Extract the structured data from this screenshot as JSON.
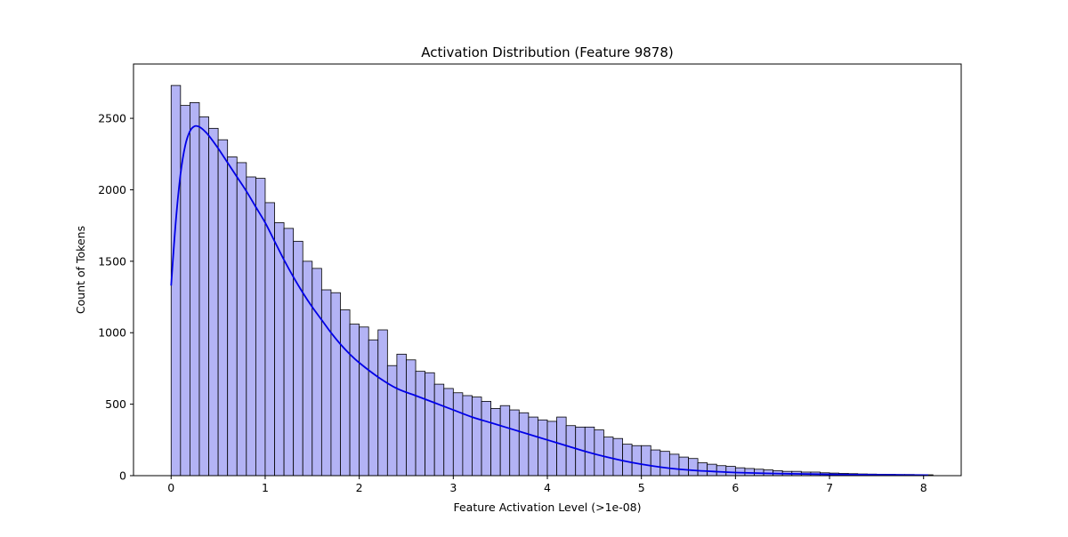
{
  "chart_data": {
    "type": "bar",
    "subtype": "histogram-with-kde",
    "title": "Activation Distribution (Feature 9878)",
    "xlabel": "Feature Activation Level (>1e-08)",
    "ylabel": "Count of Tokens",
    "xlim": [
      -0.4,
      8.4
    ],
    "ylim": [
      0,
      2880
    ],
    "x_ticks": [
      0,
      1,
      2,
      3,
      4,
      5,
      6,
      7,
      8
    ],
    "y_ticks": [
      0,
      500,
      1000,
      1500,
      2000,
      2500
    ],
    "grid": false,
    "legend": "none",
    "bin_start": 0.0,
    "bin_width": 0.1,
    "counts": [
      2730,
      2590,
      2610,
      2510,
      2430,
      2350,
      2230,
      2190,
      2090,
      2080,
      1910,
      1770,
      1730,
      1640,
      1500,
      1450,
      1300,
      1280,
      1160,
      1060,
      1040,
      950,
      1020,
      770,
      850,
      810,
      730,
      720,
      640,
      610,
      580,
      560,
      550,
      520,
      470,
      490,
      460,
      440,
      410,
      390,
      380,
      410,
      350,
      340,
      340,
      320,
      270,
      260,
      220,
      210,
      210,
      180,
      170,
      150,
      130,
      120,
      90,
      80,
      70,
      65,
      55,
      50,
      45,
      40,
      35,
      30,
      30,
      25,
      25,
      20,
      18,
      16,
      14,
      12,
      11,
      10,
      9,
      8,
      8,
      7,
      6
    ],
    "kde": {
      "x": [
        0.0,
        0.05,
        0.1,
        0.15,
        0.2,
        0.25,
        0.3,
        0.35,
        0.4,
        0.5,
        0.6,
        0.7,
        0.8,
        0.9,
        1.0,
        1.1,
        1.2,
        1.3,
        1.4,
        1.5,
        1.6,
        1.7,
        1.8,
        1.9,
        2.0,
        2.2,
        2.4,
        2.6,
        2.8,
        3.0,
        3.2,
        3.4,
        3.6,
        3.8,
        4.0,
        4.2,
        4.4,
        4.6,
        4.8,
        5.0,
        5.2,
        5.4,
        5.6,
        5.8,
        6.0,
        6.5,
        7.0,
        7.5,
        8.05
      ],
      "y": [
        1330,
        1780,
        2110,
        2310,
        2410,
        2445,
        2440,
        2415,
        2380,
        2290,
        2190,
        2090,
        1990,
        1880,
        1770,
        1640,
        1510,
        1390,
        1280,
        1180,
        1090,
        1000,
        920,
        850,
        790,
        690,
        610,
        560,
        510,
        460,
        410,
        370,
        330,
        290,
        250,
        210,
        170,
        135,
        105,
        80,
        60,
        45,
        35,
        28,
        22,
        14,
        9,
        6,
        4
      ]
    },
    "colors": {
      "bar_fill": "#b3b3f5",
      "bar_edge": "#000000",
      "kde_line": "#0000e6",
      "axes": "#000000"
    }
  }
}
